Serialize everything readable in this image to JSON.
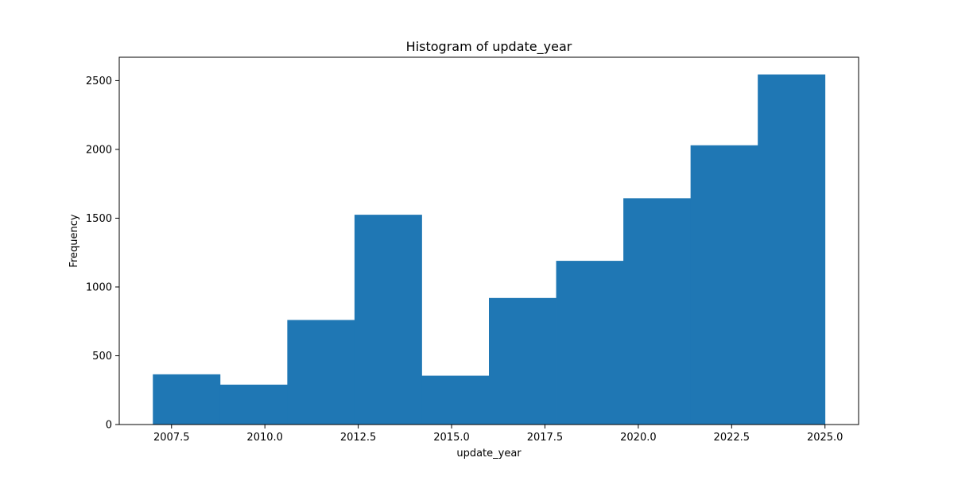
{
  "chart_data": {
    "type": "bar",
    "subtype": "histogram",
    "title": "Histogram of update_year",
    "xlabel": "update_year",
    "ylabel": "Frequency",
    "bin_edges": [
      2007.0,
      2008.8,
      2010.6,
      2012.4,
      2014.2,
      2016.0,
      2017.8,
      2019.6,
      2021.4,
      2023.2,
      2025.0
    ],
    "values": [
      365,
      290,
      760,
      1525,
      355,
      920,
      1190,
      1645,
      2030,
      2545
    ],
    "xlim": [
      2006.1,
      2025.9
    ],
    "ylim": [
      0,
      2670
    ],
    "xticks": [
      2007.5,
      2010.0,
      2012.5,
      2015.0,
      2017.5,
      2020.0,
      2022.5,
      2025.0
    ],
    "xtick_labels": [
      "2007.5",
      "2010.0",
      "2012.5",
      "2015.0",
      "2017.5",
      "2020.0",
      "2022.5",
      "2025.0"
    ],
    "yticks": [
      0,
      500,
      1000,
      1500,
      2000,
      2500
    ],
    "ytick_labels": [
      "0",
      "500",
      "1000",
      "1500",
      "2000",
      "2500"
    ],
    "bar_color": "#1f77b4",
    "grid": false,
    "legend": false
  }
}
